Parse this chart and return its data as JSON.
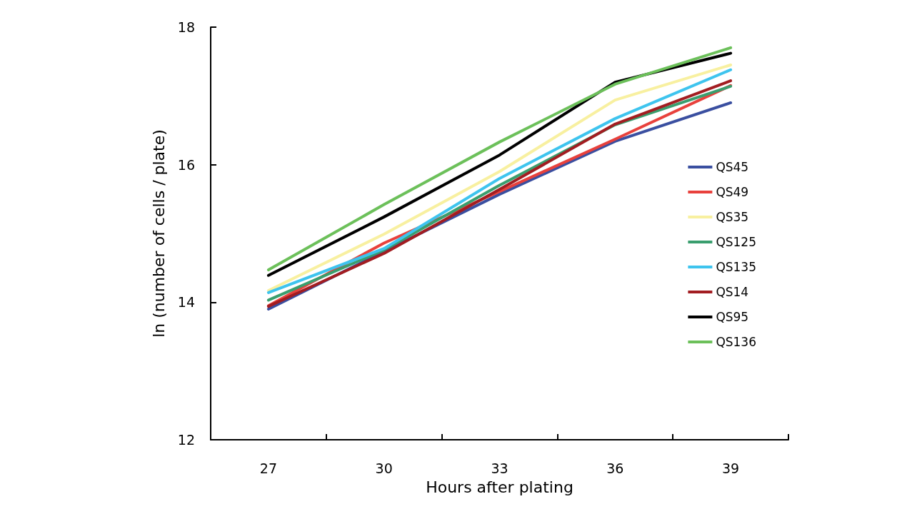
{
  "chart_data": {
    "type": "line",
    "xlabel": "Hours after plating",
    "ylabel": "ln (number of cells / plate)",
    "categories": [
      "27",
      "30",
      "33",
      "36",
      "39"
    ],
    "ylim": [
      12,
      18
    ],
    "yticks": [
      12,
      14,
      16,
      18
    ],
    "grid": false,
    "legend": "right",
    "marker": "none",
    "line_style": "solid",
    "series": [
      {
        "name": "QS45",
        "color": "#3a4fa0",
        "values": [
          13.9,
          14.74,
          15.57,
          16.34,
          16.9
        ]
      },
      {
        "name": "QS49",
        "color": "#e8413c",
        "values": [
          13.95,
          14.86,
          15.61,
          16.37,
          17.15
        ]
      },
      {
        "name": "QS35",
        "color": "#f8f0a0",
        "values": [
          14.17,
          14.99,
          15.9,
          16.94,
          17.45
        ]
      },
      {
        "name": "QS125",
        "color": "#3a9e6e",
        "values": [
          14.03,
          14.76,
          15.7,
          16.58,
          17.14
        ]
      },
      {
        "name": "QS135",
        "color": "#3ec4ee",
        "values": [
          14.14,
          14.78,
          15.8,
          16.67,
          17.38
        ]
      },
      {
        "name": "QS14",
        "color": "#a21d21",
        "values": [
          13.94,
          14.71,
          15.64,
          16.59,
          17.22
        ]
      },
      {
        "name": "QS95",
        "color": "#000000",
        "values": [
          14.39,
          15.24,
          16.14,
          17.2,
          17.62
        ]
      },
      {
        "name": "QS136",
        "color": "#6cc05a",
        "values": [
          14.47,
          15.42,
          16.33,
          17.17,
          17.7
        ]
      }
    ]
  }
}
